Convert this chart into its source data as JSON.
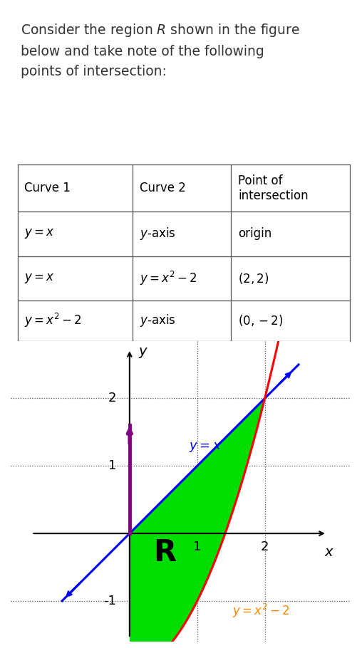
{
  "title_text": "Consider the region $R$ shown in the figure\nbelow and take note of the following\npoints of intersection:",
  "table_headers": [
    "Curve 1",
    "Curve 2",
    "Point of\nintersection"
  ],
  "table_rows": [
    [
      "$y = x$",
      "$y$-axis",
      "origin"
    ],
    [
      "$y = x$",
      "$y = x^2 - 2$",
      "$(2, 2)$"
    ],
    [
      "$y = x^2 - 2$",
      "$y$-axis",
      "$(0, -2)$"
    ]
  ],
  "xlim": [
    -1.5,
    3.0
  ],
  "ylim": [
    -1.6,
    2.85
  ],
  "xticks": [
    1,
    2
  ],
  "yticks": [
    -1,
    1,
    2
  ],
  "line_y_eq_x_color": "#0000ff",
  "line_y_eq_x2m2_color": "#ff0000",
  "yaxis_line_color": "#800080",
  "fill_color": "#00dd00",
  "label_yx_color": "#0000ff",
  "label_yx2m2_color": "#ff8800",
  "R_label_color": "#000000",
  "axis_color": "#000000",
  "text_color": "#333333",
  "background_color": "#ffffff"
}
